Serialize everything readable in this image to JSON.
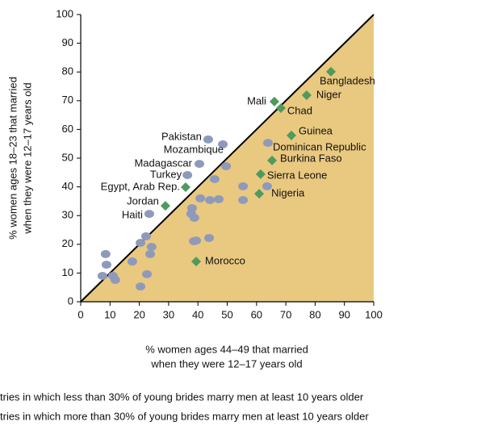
{
  "chart_data": {
    "type": "scatter",
    "xlabel": [
      "% women ages 44–49 that married",
      "when they were 12–17 years old"
    ],
    "ylabel": [
      "% women ages 18–23 that married",
      "when they were 12–17 years old"
    ],
    "xlim": [
      0,
      100
    ],
    "ylim": [
      0,
      100
    ],
    "xticks": [
      0,
      10,
      20,
      30,
      40,
      50,
      60,
      70,
      80,
      90,
      100
    ],
    "yticks": [
      0,
      10,
      20,
      30,
      40,
      50,
      60,
      70,
      80,
      90,
      100
    ],
    "series": [
      {
        "name": "tries in which less than 30% of young brides marry men at least 10 years older",
        "color": "#8f9abb",
        "marker": "circle",
        "labels": [
          "Pakistan",
          "Mozambique",
          "Madagascar",
          "Turkey",
          "Haiti",
          "Dominican Republic",
          null,
          null,
          null,
          null,
          null,
          null,
          null,
          null,
          null,
          null,
          null,
          null,
          null,
          null,
          null,
          null,
          null,
          null,
          null,
          null,
          null,
          null,
          null,
          null,
          null,
          null
        ],
        "x": [
          43.5,
          48.5,
          40.5,
          36.4,
          23.4,
          63.9,
          49.6,
          45.7,
          55.4,
          63.6,
          55.4,
          40.8,
          44.1,
          47.1,
          38,
          37.7,
          38.8,
          38.6,
          39.4,
          43.8,
          22.3,
          24.2,
          20.4,
          23.7,
          17.6,
          8.5,
          8.8,
          7.4,
          11,
          11.8,
          22.6,
          20.4
        ],
        "values": [
          56.5,
          54.8,
          48,
          44.1,
          30.6,
          55.3,
          47.2,
          42.7,
          40.2,
          40.2,
          35.4,
          36,
          35.4,
          35.7,
          32.6,
          30.6,
          29.2,
          21.1,
          21.3,
          22.2,
          22.8,
          19.1,
          20.5,
          16.6,
          14,
          16.6,
          12.9,
          9,
          9,
          7.6,
          9.6,
          5.3
        ]
      },
      {
        "name": "tries in which more than 30% of young brides marry men at least 10 years older",
        "color": "#4f9a5e",
        "marker": "diamond",
        "labels": [
          "Bangladesh",
          "Niger",
          "Mali",
          "Chad",
          "Guinea",
          "Burkina Faso",
          "Sierra Leone",
          "Nigeria",
          "Egypt, Arab Rep.",
          "Jordan",
          "Morocco"
        ],
        "x": [
          85.4,
          77.1,
          66.1,
          68.3,
          71.9,
          65.3,
          61.4,
          60.9,
          35.8,
          28.9,
          39.4
        ],
        "values": [
          80.1,
          71.9,
          69.7,
          67.4,
          57.9,
          49.2,
          44.4,
          37.6,
          39.9,
          33.4,
          14
        ]
      }
    ]
  }
}
